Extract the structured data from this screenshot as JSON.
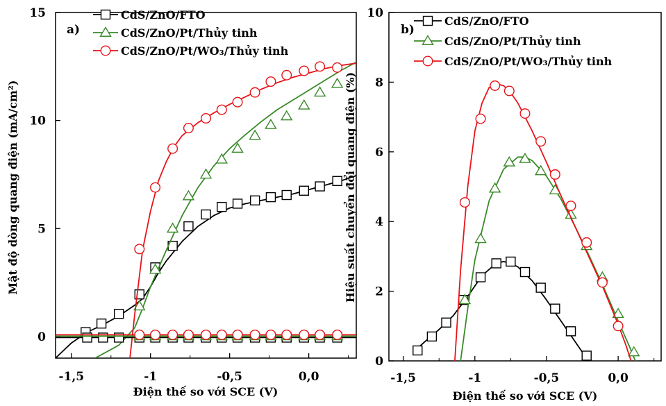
{
  "chart_data": [
    {
      "type": "line",
      "panel_label": "a)",
      "ylabel": "Mật độ dòng quang điện (mA/cm²)",
      "xlabel": "Điện thế so với SCE (V)",
      "xlim": [
        -1.6,
        0.3
      ],
      "ylim": [
        -1,
        15
      ],
      "xticks": [
        -1.5,
        -1.0,
        -0.5,
        0.0
      ],
      "xtick_labels": [
        "-1,5",
        "-1",
        "-0,5",
        "0,0"
      ],
      "yticks": [
        0,
        5,
        10,
        15
      ],
      "ytick_labels": [
        "0",
        "5",
        "10",
        "15"
      ],
      "legend_position": "top",
      "series": [
        {
          "name": "CdS/ZnO/FTO",
          "color": "#000000",
          "marker": "square",
          "x": [
            -1.6,
            -1.5,
            -1.4,
            -1.3,
            -1.2,
            -1.1,
            -1.05,
            -1.0,
            -0.95,
            -0.9,
            -0.8,
            -0.7,
            -0.6,
            -0.5,
            -0.4,
            -0.3,
            -0.2,
            -0.1,
            0.0,
            0.1,
            0.2,
            0.3
          ],
          "y": [
            -1.0,
            -0.3,
            0.2,
            0.55,
            0.95,
            1.45,
            1.75,
            2.3,
            2.95,
            3.5,
            4.4,
            5.1,
            5.6,
            5.95,
            6.15,
            6.3,
            6.45,
            6.6,
            6.8,
            7.0,
            7.2,
            7.45
          ],
          "markers_x": [
            -1.41,
            -1.31,
            -1.2,
            -1.07,
            -0.97,
            -0.86,
            -0.76,
            -0.65,
            -0.55,
            -0.45,
            -0.34,
            -0.24,
            -0.14,
            -0.03,
            0.07,
            0.18
          ],
          "markers_y": [
            0.2,
            0.6,
            1.05,
            1.95,
            3.2,
            4.2,
            5.1,
            5.65,
            6.0,
            6.15,
            6.3,
            6.45,
            6.55,
            6.75,
            6.95,
            7.2
          ]
        },
        {
          "name": "CdS/ZnO/Pt/Thủy tinh",
          "color": "#3a8a2a",
          "marker": "triangle",
          "x": [
            -1.35,
            -1.3,
            -1.2,
            -1.1,
            -1.05,
            -1.0,
            -0.9,
            -0.8,
            -0.7,
            -0.6,
            -0.5,
            -0.4,
            -0.3,
            -0.2,
            -0.1,
            0.0,
            0.1,
            0.2,
            0.3
          ],
          "y": [
            -1.0,
            -0.8,
            -0.4,
            0.4,
            1.3,
            2.3,
            4.0,
            5.6,
            6.9,
            7.9,
            8.7,
            9.35,
            9.95,
            10.5,
            10.95,
            11.4,
            11.85,
            12.3,
            12.7
          ],
          "markers_x": [
            -1.07,
            -0.97,
            -0.86,
            -0.76,
            -0.65,
            -0.55,
            -0.45,
            -0.34,
            -0.24,
            -0.14,
            -0.03,
            0.07,
            0.18
          ],
          "markers_y": [
            1.4,
            3.1,
            5.0,
            6.5,
            7.5,
            8.2,
            8.7,
            9.3,
            9.8,
            10.2,
            10.7,
            11.3,
            11.7
          ]
        },
        {
          "name": "CdS/ZnO/Pt/WO₃/Thủy tinh",
          "color": "#e8141a",
          "marker": "circle",
          "x": [
            -1.13,
            -1.1,
            -1.05,
            -1.0,
            -0.95,
            -0.9,
            -0.85,
            -0.8,
            -0.7,
            -0.6,
            -0.5,
            -0.4,
            -0.3,
            -0.2,
            -0.1,
            0.0,
            0.1,
            0.2,
            0.3
          ],
          "y": [
            -1.0,
            1.0,
            4.0,
            5.8,
            7.2,
            8.1,
            8.8,
            9.3,
            9.9,
            10.35,
            10.75,
            11.1,
            11.45,
            11.75,
            12.0,
            12.2,
            12.4,
            12.55,
            12.65
          ],
          "markers_x": [
            -1.07,
            -0.97,
            -0.86,
            -0.76,
            -0.65,
            -0.55,
            -0.45,
            -0.34,
            -0.24,
            -0.14,
            -0.03,
            0.07,
            0.18
          ],
          "markers_y": [
            4.05,
            6.9,
            8.7,
            9.65,
            10.1,
            10.5,
            10.85,
            11.3,
            11.8,
            12.1,
            12.3,
            12.5,
            12.45
          ]
        },
        {
          "name": "",
          "color": "#000000",
          "marker": "square",
          "x": [
            -1.6,
            0.3
          ],
          "y": [
            -0.05,
            -0.05
          ],
          "markers_x": [
            -1.4,
            -1.3,
            -1.2,
            -1.07,
            -0.97,
            -0.86,
            -0.76,
            -0.65,
            -0.55,
            -0.45,
            -0.34,
            -0.24,
            -0.14,
            -0.03,
            0.07,
            0.18
          ],
          "markers_y": [
            -0.05,
            -0.05,
            -0.05,
            -0.05,
            -0.05,
            -0.05,
            -0.05,
            -0.05,
            -0.05,
            -0.05,
            -0.05,
            -0.05,
            -0.05,
            -0.05,
            -0.05,
            -0.05
          ]
        },
        {
          "name": "",
          "color": "#3a8a2a",
          "marker": "triangle",
          "x": [
            -1.6,
            0.3
          ],
          "y": [
            0.02,
            0.02
          ],
          "markers_x": [
            -1.07,
            -0.97,
            -0.86,
            -0.76,
            -0.65,
            -0.55,
            -0.45,
            -0.34,
            -0.24,
            -0.14,
            -0.03,
            0.07,
            0.18
          ],
          "markers_y": [
            0.02,
            0.02,
            0.02,
            0.02,
            0.02,
            0.02,
            0.02,
            0.02,
            0.02,
            0.02,
            0.02,
            0.02,
            0.02
          ]
        },
        {
          "name": "",
          "color": "#e8141a",
          "marker": "circle",
          "x": [
            -1.6,
            0.3
          ],
          "y": [
            0.08,
            0.08
          ],
          "markers_x": [
            -1.07,
            -0.97,
            -0.86,
            -0.76,
            -0.65,
            -0.55,
            -0.45,
            -0.34,
            -0.24,
            -0.14,
            -0.03,
            0.07,
            0.18
          ],
          "markers_y": [
            0.08,
            0.08,
            0.08,
            0.08,
            0.08,
            0.08,
            0.08,
            0.08,
            0.08,
            0.08,
            0.08,
            0.08,
            0.08
          ]
        }
      ]
    },
    {
      "type": "line",
      "panel_label": "b)",
      "ylabel": "Hiệu suất chuyển đổi quang điện (%)",
      "xlabel": "Điện thế so với SCE (V)",
      "xlim": [
        -1.6,
        0.3
      ],
      "ylim": [
        0,
        10
      ],
      "xticks": [
        -1.5,
        -1.0,
        -0.5,
        0.0
      ],
      "xtick_labels": [
        "-1,5",
        "-1",
        "-0,5",
        "0,0"
      ],
      "yticks": [
        0,
        2,
        4,
        6,
        8,
        10
      ],
      "ytick_labels": [
        "0",
        "2",
        "4",
        "6",
        "8",
        "10"
      ],
      "legend_position": "top",
      "series": [
        {
          "name": "CdS/ZnO/FTO",
          "color": "#000000",
          "marker": "square",
          "x": [
            -1.43,
            -1.35,
            -1.25,
            -1.15,
            -1.05,
            -0.95,
            -0.85,
            -0.8,
            -0.75,
            -0.7,
            -0.6,
            -0.5,
            -0.4,
            -0.3,
            -0.25,
            -0.21
          ],
          "y": [
            0.25,
            0.55,
            0.9,
            1.3,
            1.85,
            2.45,
            2.8,
            2.85,
            2.8,
            2.7,
            2.3,
            1.75,
            1.15,
            0.55,
            0.25,
            0.0
          ],
          "markers_x": [
            -1.4,
            -1.3,
            -1.2,
            -1.08,
            -0.96,
            -0.85,
            -0.75,
            -0.65,
            -0.54,
            -0.44,
            -0.33,
            -0.22
          ],
          "markers_y": [
            0.3,
            0.7,
            1.1,
            1.75,
            2.4,
            2.8,
            2.85,
            2.55,
            2.1,
            1.5,
            0.85,
            0.15
          ]
        },
        {
          "name": "CdS/ZnO/Pt/Thủy tinh",
          "color": "#3a8a2a",
          "marker": "triangle",
          "x": [
            -1.1,
            -1.05,
            -1.0,
            -0.9,
            -0.8,
            -0.7,
            -0.65,
            -0.6,
            -0.5,
            -0.4,
            -0.3,
            -0.2,
            -0.1,
            0.0,
            0.08,
            0.12
          ],
          "y": [
            0.0,
            1.5,
            2.9,
            4.6,
            5.5,
            5.85,
            5.85,
            5.75,
            5.3,
            4.65,
            3.85,
            3.0,
            2.1,
            1.15,
            0.4,
            0.0
          ],
          "markers_x": [
            -1.07,
            -0.96,
            -0.86,
            -0.76,
            -0.65,
            -0.54,
            -0.44,
            -0.33,
            -0.22,
            -0.11,
            0.0,
            0.11
          ],
          "markers_y": [
            1.75,
            3.5,
            4.95,
            5.7,
            5.8,
            5.45,
            4.9,
            4.2,
            3.3,
            2.4,
            1.35,
            0.25
          ]
        },
        {
          "name": "CdS/ZnO/Pt/WO₃/Thủy tinh",
          "color": "#e8141a",
          "marker": "circle",
          "x": [
            -1.14,
            -1.1,
            -1.05,
            -1.0,
            -0.95,
            -0.9,
            -0.85,
            -0.8,
            -0.75,
            -0.7,
            -0.6,
            -0.5,
            -0.4,
            -0.3,
            -0.2,
            -0.1,
            0.0,
            0.05,
            0.09
          ],
          "y": [
            0.0,
            2.6,
            5.0,
            6.6,
            7.4,
            7.85,
            7.95,
            7.9,
            7.7,
            7.4,
            6.6,
            5.7,
            4.75,
            3.85,
            2.95,
            2.05,
            1.05,
            0.5,
            0.0
          ],
          "markers_x": [
            -1.07,
            -0.96,
            -0.86,
            -0.76,
            -0.65,
            -0.54,
            -0.44,
            -0.33,
            -0.22,
            -0.11,
            0.0
          ],
          "markers_y": [
            4.55,
            6.95,
            7.9,
            7.75,
            7.1,
            6.3,
            5.35,
            4.45,
            3.4,
            2.25,
            1.0
          ]
        }
      ]
    }
  ]
}
